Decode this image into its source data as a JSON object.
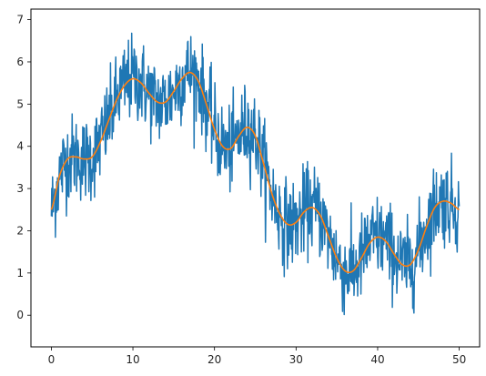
{
  "chart_data": {
    "type": "line",
    "title": "",
    "xlabel": "",
    "ylabel": "",
    "xlim": [
      -2.5,
      52.5
    ],
    "ylim": [
      -0.75,
      7.25
    ],
    "x_ticks": [
      0,
      10,
      20,
      30,
      40,
      50
    ],
    "y_ticks": [
      0,
      1,
      2,
      3,
      4,
      5,
      6,
      7
    ],
    "grid": false,
    "legend": "none",
    "colors": {
      "noisy": "#1f77b4",
      "smooth": "#ff7f0e"
    },
    "noise_amplitude": 0.5,
    "series": [
      {
        "kind": "noisy",
        "sample_spacing": 0.05,
        "description_points": "dense noisy samples around the smooth curve, roughly ±1 amplitude; generated by script around the smooth series"
      },
      {
        "kind": "smooth",
        "x": [
          0,
          1,
          2,
          3,
          4,
          5,
          6,
          7,
          8,
          9,
          10,
          11,
          12,
          13,
          14,
          15,
          16,
          17,
          18,
          19,
          20,
          21,
          22,
          23,
          24,
          25,
          26,
          27,
          28,
          29,
          30,
          31,
          32,
          33,
          34,
          35,
          36,
          37,
          38,
          39,
          40,
          41,
          42,
          43,
          44,
          45,
          46,
          47,
          48,
          49,
          50
        ],
        "y": [
          2.5,
          3.3,
          3.7,
          3.75,
          3.7,
          3.75,
          4.1,
          4.6,
          5.1,
          5.45,
          5.6,
          5.5,
          5.25,
          5.05,
          5.05,
          5.3,
          5.6,
          5.75,
          5.55,
          5.0,
          4.4,
          4.0,
          3.95,
          4.25,
          4.45,
          4.25,
          3.6,
          2.9,
          2.4,
          2.15,
          2.2,
          2.45,
          2.55,
          2.35,
          1.85,
          1.35,
          1.05,
          1.05,
          1.35,
          1.7,
          1.85,
          1.75,
          1.45,
          1.2,
          1.2,
          1.55,
          2.1,
          2.55,
          2.7,
          2.65,
          2.5
        ]
      }
    ]
  }
}
